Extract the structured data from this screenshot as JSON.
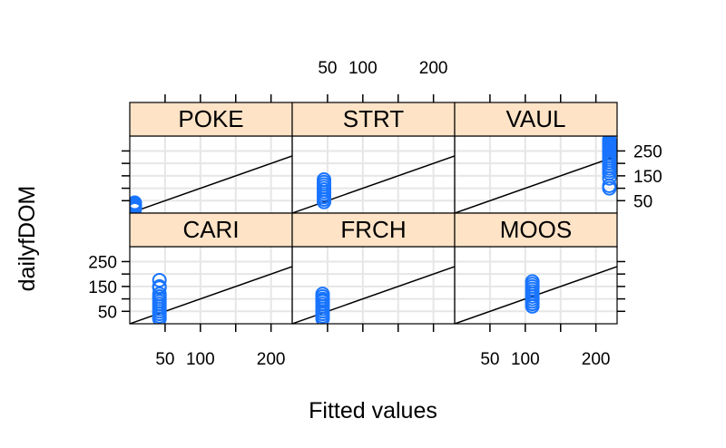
{
  "chart_data": {
    "type": "scatter",
    "xlabel": "Fitted values",
    "ylabel": "dailyfDOM",
    "xlim": [
      0,
      230
    ],
    "ylim": [
      0,
      310
    ],
    "x_ticks": [
      50,
      100,
      200
    ],
    "x_ticks_minor": [
      50,
      100,
      150,
      200,
      250
    ],
    "y_ticks": [
      50,
      150,
      250
    ],
    "y_ticks_minor": [
      50,
      100,
      150,
      200,
      250
    ],
    "grid": true,
    "reference_line": "y = x",
    "layout": {
      "columns": 3,
      "rows": 2
    },
    "point_color": "#1874ff",
    "strip_color": "#ffe3c6",
    "panels": [
      {
        "name": "POKE",
        "x": [
          7,
          7,
          7,
          7,
          7,
          7,
          7,
          7
        ],
        "y": [
          15,
          20,
          25,
          28,
          32,
          35,
          38,
          42
        ]
      },
      {
        "name": "STRT",
        "x": [
          45,
          45,
          45,
          45,
          45,
          45,
          45,
          45,
          45,
          45
        ],
        "y": [
          45,
          55,
          65,
          75,
          85,
          95,
          105,
          115,
          125,
          135
        ]
      },
      {
        "name": "VAUL",
        "x": [
          219,
          219,
          219,
          219,
          219,
          219,
          219,
          219,
          219,
          219,
          219,
          219,
          219,
          219,
          219,
          219,
          219,
          219,
          219,
          219,
          219,
          219
        ],
        "y": [
          100,
          110,
          140,
          160,
          170,
          180,
          190,
          200,
          210,
          220,
          230,
          240,
          250,
          255,
          260,
          265,
          270,
          275,
          280,
          285,
          290,
          295
        ]
      },
      {
        "name": "CARI",
        "x": [
          42,
          42,
          42,
          42,
          42,
          42,
          42,
          42,
          42,
          42,
          42,
          42,
          42,
          42
        ],
        "y": [
          20,
          30,
          40,
          50,
          60,
          70,
          80,
          90,
          100,
          110,
          120,
          145,
          150,
          175
        ]
      },
      {
        "name": "FRCH",
        "x": [
          43,
          43,
          43,
          43,
          43,
          43,
          43,
          43,
          43,
          43,
          43,
          43
        ],
        "y": [
          20,
          30,
          40,
          50,
          60,
          70,
          80,
          90,
          95,
          100,
          110,
          120
        ]
      },
      {
        "name": "MOOS",
        "x": [
          110,
          110,
          110,
          110,
          110,
          110,
          110,
          110,
          110,
          110,
          110
        ],
        "y": [
          70,
          80,
          90,
          100,
          110,
          120,
          130,
          140,
          150,
          160,
          170
        ]
      }
    ]
  }
}
